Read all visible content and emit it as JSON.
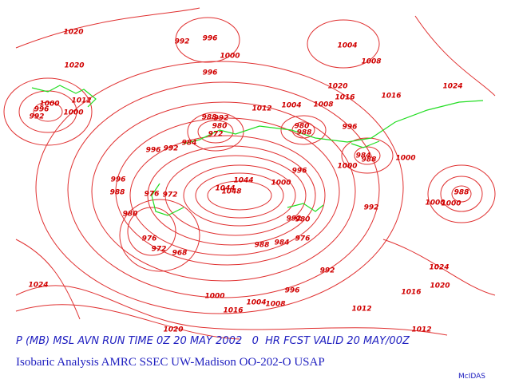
{
  "caption": {
    "line1": "P (MB) MSL AVN RUN TIME 0Z 20 MAY 2002   0  HR FCST VALID 20 MAY/00Z",
    "line2": "Isobaric Analysis AMRC SSEC UW-Madison OO-202-O USAP",
    "brand": "McIDAS"
  },
  "isobar_labels": [
    1020,
    992,
    996,
    1000,
    1004,
    1008,
    1020,
    996,
    1024,
    1020,
    1016,
    1016,
    1012,
    1004,
    1008,
    1000,
    1012,
    996,
    1000,
    992,
    988,
    992,
    980,
    972,
    980,
    988,
    996,
    992,
    996,
    984,
    984,
    988,
    1000,
    1000,
    996,
    996,
    988,
    976,
    972,
    1044,
    1048,
    1044,
    1000,
    992,
    988,
    1000,
    1000,
    980,
    992,
    980,
    976,
    972,
    968,
    988,
    984,
    976,
    992,
    1024,
    1024,
    1020,
    996,
    1000,
    1016,
    1004,
    1008,
    1016,
    1012,
    1020,
    1012
  ]
}
